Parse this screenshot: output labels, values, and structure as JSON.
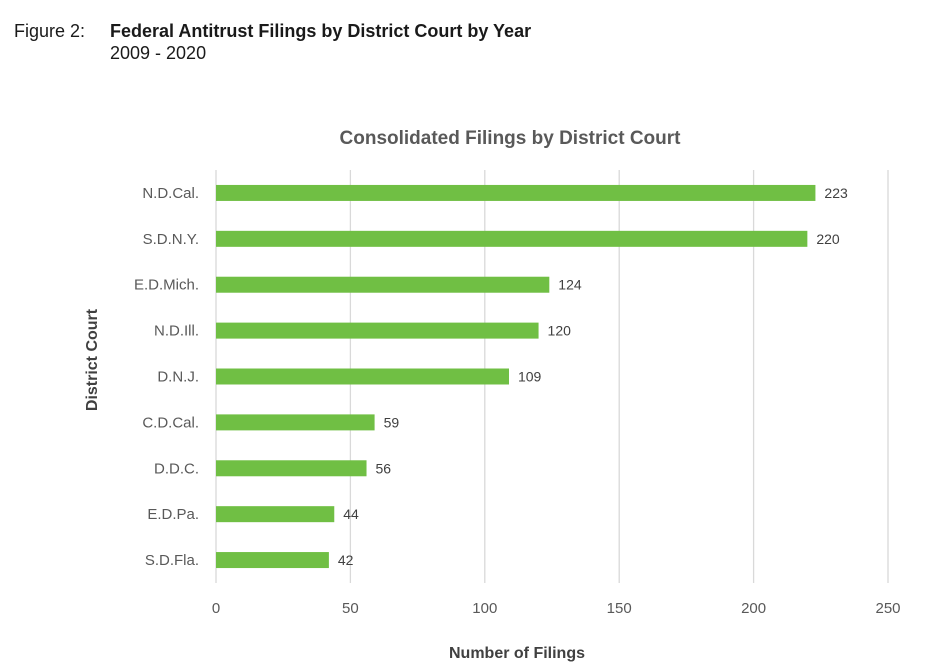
{
  "figure": {
    "label": "Figure 2:",
    "title": "Federal Antitrust Filings by District Court by Year",
    "subtitle": "2009 - 2020"
  },
  "chart_data": {
    "type": "bar",
    "orientation": "horizontal",
    "title": "Consolidated Filings by District Court",
    "xlabel": "Number of Filings",
    "ylabel": "District Court",
    "categories": [
      "N.D.Cal.",
      "S.D.N.Y.",
      "E.D.Mich.",
      "N.D.Ill.",
      "D.N.J.",
      "C.D.Cal.",
      "D.D.C.",
      "E.D.Pa.",
      "S.D.Fla."
    ],
    "values": [
      223,
      220,
      124,
      120,
      109,
      59,
      56,
      44,
      42
    ],
    "xlim": [
      0,
      250
    ],
    "xticks": [
      0,
      50,
      100,
      150,
      200,
      250
    ],
    "grid": true,
    "bar_color": "#70bf44",
    "grid_color": "#d9d9d9"
  }
}
